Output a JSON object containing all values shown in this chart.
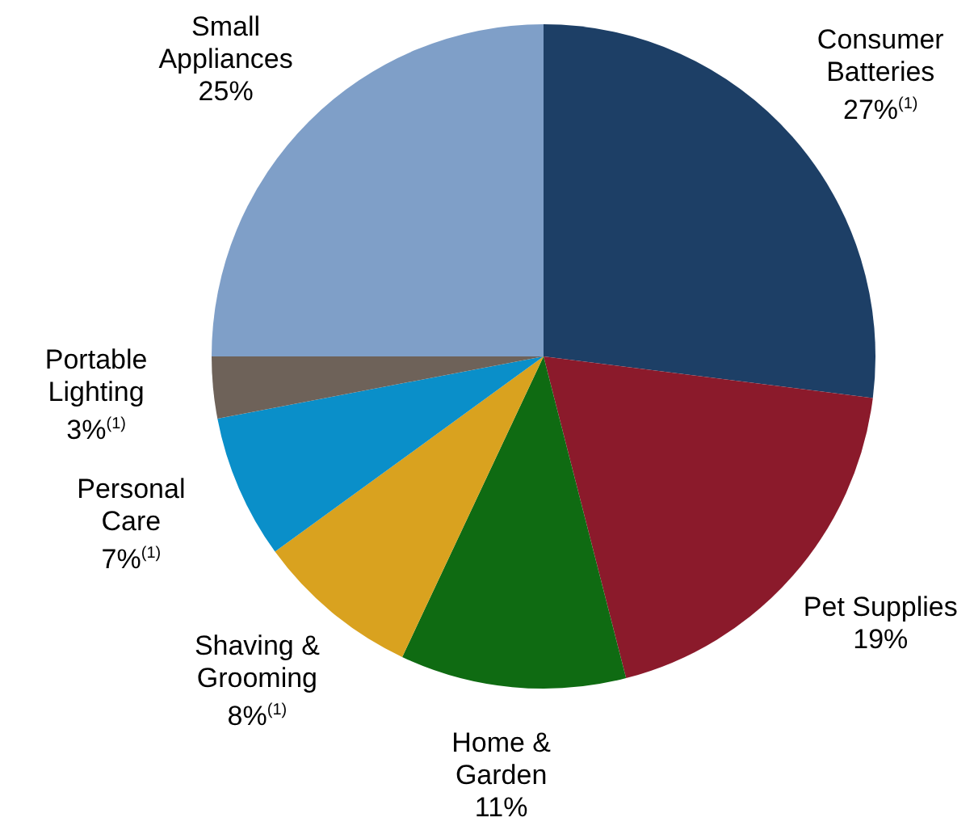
{
  "chart_data": {
    "type": "pie",
    "categories": [
      "Consumer Batteries",
      "Pet Supplies",
      "Home & Garden",
      "Shaving & Grooming",
      "Personal Care",
      "Portable Lighting",
      "Small Appliances"
    ],
    "values": [
      27,
      19,
      11,
      8,
      7,
      3,
      25
    ],
    "value_labels": [
      "27%$^{(1)}$",
      "19%",
      "11%",
      "8%$^{(1)}$",
      "7%$^{(1)}$",
      "3%$^{(1)}$",
      "25%"
    ],
    "colors": [
      "#1d3f66",
      "#8b1a2b",
      "#0f6b12",
      "#d9a21f",
      "#0a8fc9",
      "#6e6259",
      "#7f9fc8"
    ],
    "legend": false
  }
}
